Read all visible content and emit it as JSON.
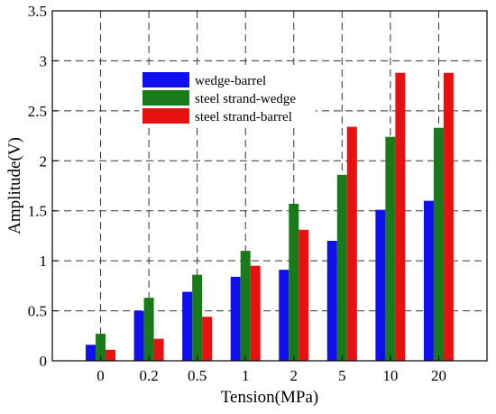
{
  "chart_data": {
    "type": "bar",
    "title": "",
    "xlabel": "Tension(MPa)",
    "ylabel": "Amplitude(V)",
    "categories": [
      "0",
      "0.2",
      "0.5",
      "1",
      "2",
      "5",
      "10",
      "20"
    ],
    "ylim": [
      0,
      3.5
    ],
    "yticks": [
      "0",
      "0.5",
      "1",
      "1.5",
      "2",
      "2.5",
      "3",
      "3.5"
    ],
    "grid": true,
    "legend_position": "top-left",
    "series": [
      {
        "name": "wedge-barrel",
        "color": "#1010ee",
        "values": [
          0.16,
          0.5,
          0.69,
          0.84,
          0.91,
          1.2,
          1.51,
          1.6
        ]
      },
      {
        "name": "steel strand-wedge",
        "color": "#1a7a1a",
        "values": [
          0.27,
          0.63,
          0.86,
          1.1,
          1.57,
          1.86,
          2.24,
          2.33
        ]
      },
      {
        "name": "steel strand-barrel",
        "color": "#e81010",
        "values": [
          0.11,
          0.22,
          0.44,
          0.95,
          1.31,
          2.34,
          2.88,
          2.88
        ]
      }
    ]
  }
}
